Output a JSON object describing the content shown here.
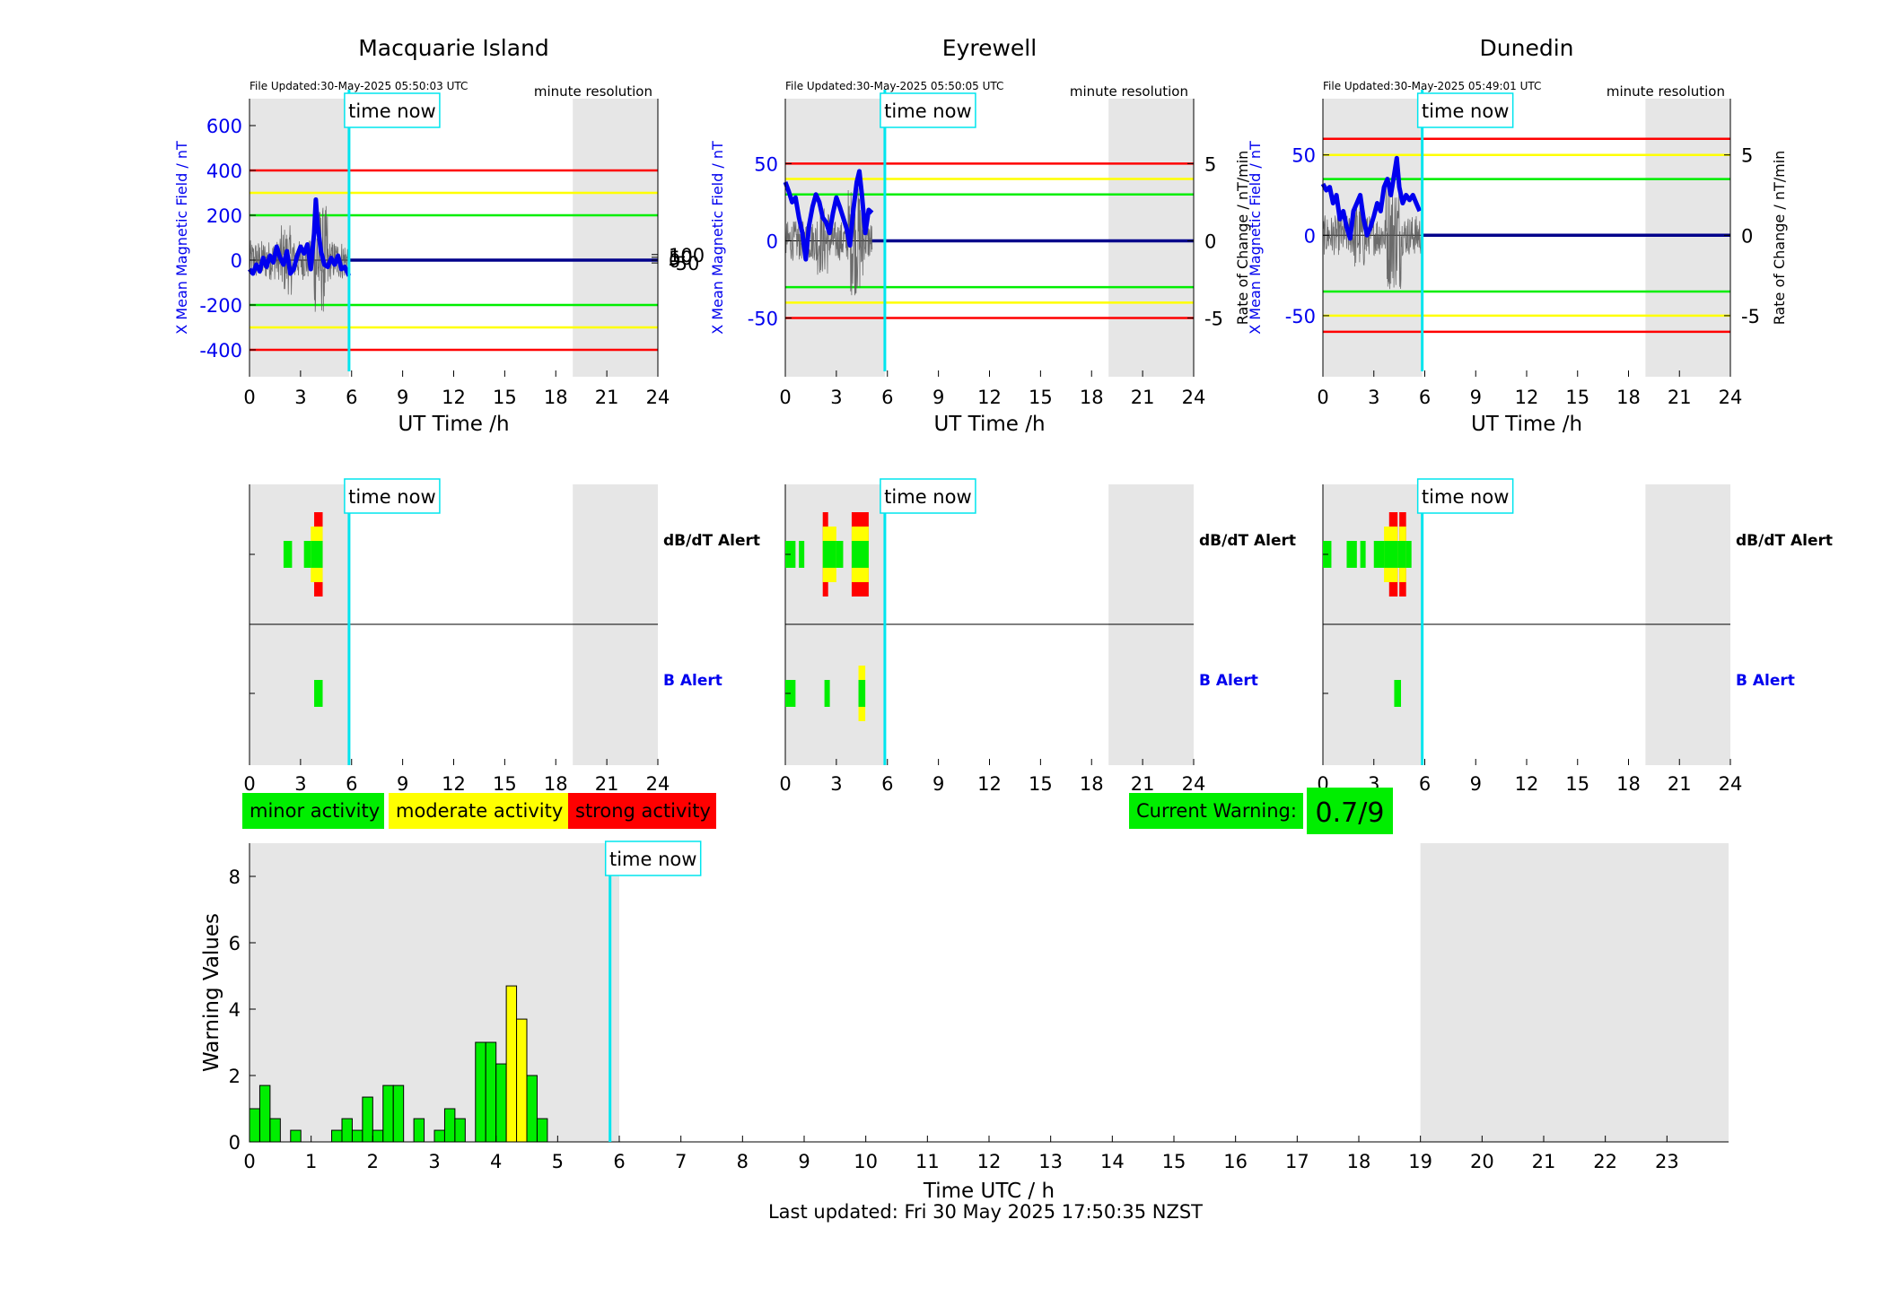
{
  "figure": {
    "last_updated": "Last updated: Fri 30 May 2025 17:50:35 NZST",
    "time_now_label": "time now",
    "time_now_hours": 5.85,
    "night_shade_start": 19,
    "shade_color": "#e6e6e6",
    "now_line_color": "#00e5ee"
  },
  "legend": {
    "items": [
      {
        "label": "minor activity",
        "color": "#00ee00"
      },
      {
        "label": "moderate activity",
        "color": "#ffff00"
      },
      {
        "label": "strong activity",
        "color": "#ff0000"
      }
    ],
    "current_warning_label": "Current Warning:",
    "current_warning_value": "0.7/9"
  },
  "stations": [
    {
      "name": "Macquarie Island",
      "file_updated": "File Updated:30-May-2025 05:50:03 UTC",
      "resolution": "minute resolution",
      "left_ylabel": "X Mean Magnetic Field / nT",
      "right_ylabel": "",
      "left_ylim": [
        -520,
        720
      ],
      "left_ticks": [
        600,
        400,
        200,
        0,
        -200,
        -400
      ],
      "right_ticks": [
        100,
        50,
        0,
        -50
      ],
      "right_ticks_per_left": 4,
      "xlabel": "UT Time /h",
      "thresholds": [
        {
          "value": 400,
          "color": "#ff0000"
        },
        {
          "value": 300,
          "color": "#ffff00"
        },
        {
          "value": 200,
          "color": "#00ee00"
        },
        {
          "value": -200,
          "color": "#00ee00"
        },
        {
          "value": -300,
          "color": "#ffff00"
        },
        {
          "value": -400,
          "color": "#ff0000"
        }
      ],
      "data_end": 5.85,
      "x_series": [
        [
          0,
          -40
        ],
        [
          0.2,
          -60
        ],
        [
          0.4,
          -20
        ],
        [
          0.6,
          -50
        ],
        [
          0.8,
          10
        ],
        [
          1.0,
          -30
        ],
        [
          1.2,
          20
        ],
        [
          1.4,
          -10
        ],
        [
          1.6,
          60
        ],
        [
          1.8,
          10
        ],
        [
          2.0,
          -20
        ],
        [
          2.2,
          40
        ],
        [
          2.4,
          -60
        ],
        [
          2.6,
          -40
        ],
        [
          2.8,
          20
        ],
        [
          3.0,
          60
        ],
        [
          3.2,
          30
        ],
        [
          3.4,
          70
        ],
        [
          3.6,
          -40
        ],
        [
          3.8,
          120
        ],
        [
          3.9,
          270
        ],
        [
          4.0,
          160
        ],
        [
          4.2,
          40
        ],
        [
          4.4,
          -20
        ],
        [
          4.6,
          -30
        ],
        [
          4.8,
          10
        ],
        [
          5.0,
          -20
        ],
        [
          5.2,
          20
        ],
        [
          5.4,
          -40
        ],
        [
          5.6,
          -30
        ],
        [
          5.85,
          -70
        ]
      ],
      "rate_range": [
        -5,
        12
      ],
      "dbdt_alerts": [
        [
          2.0,
          2.5,
          1
        ],
        [
          3.2,
          3.6,
          1
        ],
        [
          3.6,
          3.8,
          2
        ],
        [
          3.8,
          4.3,
          3
        ]
      ],
      "b_alerts": [
        [
          3.8,
          4.3,
          1
        ]
      ]
    },
    {
      "name": "Eyrewell",
      "file_updated": "File Updated:30-May-2025 05:50:05 UTC",
      "resolution": "minute resolution",
      "left_ylabel": "X Mean Magnetic Field / nT",
      "right_ylabel": "Rate of Change / nT/min",
      "left_ylim": [
        -88,
        92
      ],
      "left_ticks": [
        50,
        0,
        -50
      ],
      "right_ticks": [
        5,
        0,
        -5
      ],
      "right_ticks_per_left": 0.1,
      "xlabel": "UT Time /h",
      "thresholds": [
        {
          "value": 50,
          "color": "#ff0000"
        },
        {
          "value": 40,
          "color": "#ffff00"
        },
        {
          "value": 30,
          "color": "#00ee00"
        },
        {
          "value": -30,
          "color": "#00ee00"
        },
        {
          "value": -40,
          "color": "#ffff00"
        },
        {
          "value": -50,
          "color": "#ff0000"
        }
      ],
      "data_end": 5.1,
      "x_series": [
        [
          0,
          38
        ],
        [
          0.2,
          32
        ],
        [
          0.4,
          25
        ],
        [
          0.6,
          28
        ],
        [
          0.8,
          15
        ],
        [
          1.0,
          5
        ],
        [
          1.2,
          -12
        ],
        [
          1.4,
          10
        ],
        [
          1.6,
          22
        ],
        [
          1.8,
          30
        ],
        [
          2.0,
          25
        ],
        [
          2.2,
          15
        ],
        [
          2.4,
          12
        ],
        [
          2.6,
          5
        ],
        [
          2.8,
          18
        ],
        [
          3.0,
          28
        ],
        [
          3.2,
          22
        ],
        [
          3.4,
          15
        ],
        [
          3.6,
          8
        ],
        [
          3.8,
          -3
        ],
        [
          4.0,
          20
        ],
        [
          4.2,
          38
        ],
        [
          4.35,
          45
        ],
        [
          4.5,
          30
        ],
        [
          4.7,
          5
        ],
        [
          4.9,
          20
        ],
        [
          5.1,
          18
        ]
      ],
      "rate_range": [
        -6,
        6
      ],
      "dbdt_alerts": [
        [
          0,
          0.6,
          1
        ],
        [
          0.8,
          1.1,
          1
        ],
        [
          2.2,
          2.4,
          3
        ],
        [
          2.4,
          3.0,
          2
        ],
        [
          3.0,
          3.4,
          1
        ],
        [
          3.9,
          4.9,
          3
        ]
      ],
      "b_alerts": [
        [
          0,
          0.6,
          1
        ],
        [
          2.3,
          2.6,
          1
        ],
        [
          4.3,
          4.7,
          2
        ]
      ]
    },
    {
      "name": "Dunedin",
      "file_updated": "File Updated:30-May-2025 05:49:01 UTC",
      "resolution": "minute resolution",
      "left_ylabel": "X Mean Magnetic Field / nT",
      "right_ylabel": "Rate of Change / nT/min",
      "left_ylim": [
        -88,
        85
      ],
      "left_ticks": [
        50,
        0,
        -50
      ],
      "right_ticks": [
        5,
        0,
        -5
      ],
      "right_ticks_per_left": 0.1,
      "xlabel": "UT Time /h",
      "thresholds": [
        {
          "value": 60,
          "color": "#ff0000"
        },
        {
          "value": 50,
          "color": "#ffff00"
        },
        {
          "value": 35,
          "color": "#00ee00"
        },
        {
          "value": -35,
          "color": "#00ee00"
        },
        {
          "value": -50,
          "color": "#ffff00"
        },
        {
          "value": -60,
          "color": "#ff0000"
        }
      ],
      "data_end": 5.85,
      "x_series": [
        [
          0,
          32
        ],
        [
          0.2,
          28
        ],
        [
          0.4,
          30
        ],
        [
          0.6,
          20
        ],
        [
          0.8,
          25
        ],
        [
          1.0,
          10
        ],
        [
          1.2,
          15
        ],
        [
          1.4,
          5
        ],
        [
          1.6,
          -2
        ],
        [
          1.8,
          15
        ],
        [
          2.0,
          20
        ],
        [
          2.2,
          25
        ],
        [
          2.4,
          10
        ],
        [
          2.6,
          0
        ],
        [
          2.8,
          5
        ],
        [
          3.0,
          12
        ],
        [
          3.2,
          20
        ],
        [
          3.4,
          15
        ],
        [
          3.6,
          30
        ],
        [
          3.8,
          35
        ],
        [
          4.0,
          25
        ],
        [
          4.2,
          38
        ],
        [
          4.35,
          48
        ],
        [
          4.5,
          30
        ],
        [
          4.7,
          20
        ],
        [
          4.9,
          25
        ],
        [
          5.1,
          22
        ],
        [
          5.3,
          25
        ],
        [
          5.5,
          20
        ],
        [
          5.7,
          15
        ]
      ],
      "rate_range": [
        -6,
        6
      ],
      "dbdt_alerts": [
        [
          0,
          0.5,
          1
        ],
        [
          1.4,
          2.0,
          1
        ],
        [
          2.2,
          2.5,
          1
        ],
        [
          3.0,
          3.6,
          1
        ],
        [
          3.6,
          3.9,
          2
        ],
        [
          3.9,
          4.4,
          3
        ],
        [
          4.4,
          4.5,
          1
        ],
        [
          4.5,
          4.9,
          3
        ],
        [
          4.9,
          5.1,
          1
        ]
      ],
      "b_alerts": [
        [
          4.2,
          4.6,
          1
        ]
      ]
    }
  ],
  "warning_chart": {
    "type": "bar",
    "ylabel": "Warning Values",
    "xlabel": "Time UTC / h",
    "ylim": [
      0,
      9
    ],
    "yticks": [
      0,
      2,
      4,
      6,
      8
    ],
    "xticks": [
      0,
      1,
      2,
      3,
      4,
      5,
      6,
      7,
      8,
      9,
      10,
      11,
      12,
      13,
      14,
      15,
      16,
      17,
      18,
      19,
      20,
      21,
      22,
      23
    ],
    "xlim": [
      0,
      24
    ],
    "bin_width": 0.1667,
    "bars": [
      {
        "x": 0.0,
        "value": 1.0,
        "color": "#00ee00"
      },
      {
        "x": 0.1667,
        "value": 1.7,
        "color": "#00ee00"
      },
      {
        "x": 0.3333,
        "value": 0.7,
        "color": "#00ee00"
      },
      {
        "x": 0.6667,
        "value": 0.35,
        "color": "#00ee00"
      },
      {
        "x": 1.3333,
        "value": 0.35,
        "color": "#00ee00"
      },
      {
        "x": 1.5,
        "value": 0.7,
        "color": "#00ee00"
      },
      {
        "x": 1.6667,
        "value": 0.35,
        "color": "#00ee00"
      },
      {
        "x": 1.8333,
        "value": 1.35,
        "color": "#00ee00"
      },
      {
        "x": 2.0,
        "value": 0.35,
        "color": "#00ee00"
      },
      {
        "x": 2.1667,
        "value": 1.7,
        "color": "#00ee00"
      },
      {
        "x": 2.3333,
        "value": 1.7,
        "color": "#00ee00"
      },
      {
        "x": 2.6667,
        "value": 0.7,
        "color": "#00ee00"
      },
      {
        "x": 3.0,
        "value": 0.35,
        "color": "#00ee00"
      },
      {
        "x": 3.1667,
        "value": 1.0,
        "color": "#00ee00"
      },
      {
        "x": 3.3333,
        "value": 0.7,
        "color": "#00ee00"
      },
      {
        "x": 3.6667,
        "value": 3.0,
        "color": "#00ee00"
      },
      {
        "x": 3.8333,
        "value": 3.0,
        "color": "#00ee00"
      },
      {
        "x": 4.0,
        "value": 2.35,
        "color": "#00ee00"
      },
      {
        "x": 4.1667,
        "value": 4.7,
        "color": "#ffff00"
      },
      {
        "x": 4.3333,
        "value": 3.7,
        "color": "#ffff00"
      },
      {
        "x": 4.5,
        "value": 2.0,
        "color": "#00ee00"
      },
      {
        "x": 4.6667,
        "value": 0.7,
        "color": "#00ee00"
      }
    ]
  }
}
